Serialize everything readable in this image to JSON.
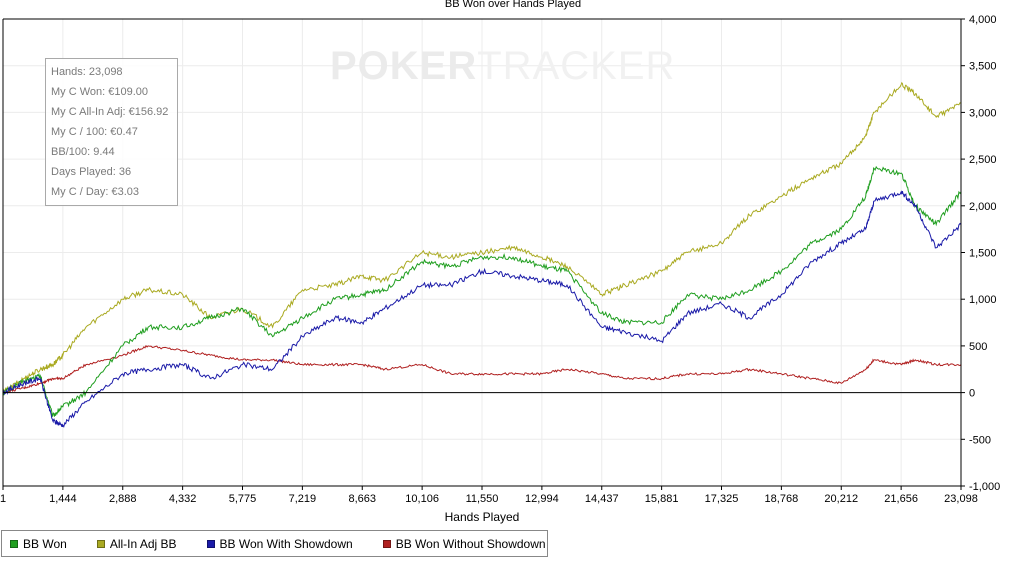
{
  "chart_data": {
    "type": "line",
    "title": "BB Won over Hands Played",
    "xlabel": "Hands Played",
    "ylabel": "",
    "xlim": [
      1,
      23098
    ],
    "ylim": [
      -1000,
      4000
    ],
    "x_ticks": [
      "1",
      "1,444",
      "2,888",
      "4,332",
      "5,775",
      "7,219",
      "8,663",
      "10,106",
      "11,550",
      "12,994",
      "14,437",
      "15,881",
      "17,325",
      "18,768",
      "20,212",
      "21,656",
      "23,098"
    ],
    "y_ticks": [
      "4,000",
      "3,500",
      "3,000",
      "2,500",
      "2,000",
      "1,500",
      "1,000",
      "500",
      "0",
      "-500",
      "-1,000"
    ],
    "grid": true,
    "legend_position": "bottom-left",
    "series": [
      {
        "name": "BB Won",
        "color": "#1f9e1f",
        "x": [
          1,
          500,
          900,
          1200,
          1444,
          2000,
          2888,
          3500,
          4332,
          5000,
          5775,
          6500,
          7219,
          8000,
          8663,
          9200,
          10106,
          10800,
          11550,
          12300,
          12994,
          13600,
          14437,
          15000,
          15881,
          16500,
          17325,
          18000,
          18768,
          19500,
          20212,
          20800,
          21000,
          21656,
          22000,
          22500,
          23098
        ],
        "y": [
          0,
          120,
          180,
          -250,
          -150,
          0,
          500,
          700,
          700,
          800,
          900,
          600,
          800,
          1000,
          1050,
          1100,
          1400,
          1350,
          1450,
          1450,
          1350,
          1300,
          850,
          750,
          750,
          1050,
          1000,
          1100,
          1300,
          1600,
          1750,
          2100,
          2400,
          2350,
          2000,
          1800,
          2150
        ]
      },
      {
        "name": "All-In Adj BB",
        "color": "#aaaa22",
        "x": [
          1,
          500,
          900,
          1200,
          1444,
          2000,
          2888,
          3500,
          4332,
          5000,
          5775,
          6500,
          7219,
          8000,
          8663,
          9200,
          10106,
          10800,
          11550,
          12300,
          12994,
          13600,
          14437,
          15000,
          15881,
          16500,
          17325,
          18000,
          18768,
          19500,
          20212,
          20800,
          21000,
          21656,
          22000,
          22500,
          23098
        ],
        "y": [
          0,
          150,
          250,
          300,
          400,
          700,
          1000,
          1100,
          1050,
          800,
          900,
          700,
          1100,
          1150,
          1250,
          1200,
          1500,
          1450,
          1500,
          1550,
          1450,
          1350,
          1050,
          1150,
          1300,
          1500,
          1600,
          1900,
          2100,
          2300,
          2450,
          2750,
          3000,
          3300,
          3200,
          2950,
          3100
        ]
      },
      {
        "name": "BB Won With Showdown",
        "color": "#1a1aa8",
        "x": [
          1,
          500,
          900,
          1200,
          1444,
          2000,
          2888,
          3500,
          4332,
          5000,
          5775,
          6500,
          7219,
          8000,
          8663,
          9200,
          10106,
          10800,
          11550,
          12300,
          12994,
          13600,
          14437,
          15000,
          15881,
          16500,
          17325,
          18000,
          18768,
          19500,
          20212,
          20800,
          21000,
          21656,
          22000,
          22500,
          23098
        ],
        "y": [
          0,
          100,
          150,
          -300,
          -350,
          -100,
          200,
          250,
          300,
          150,
          300,
          250,
          600,
          800,
          750,
          900,
          1150,
          1150,
          1300,
          1250,
          1200,
          1150,
          700,
          650,
          550,
          850,
          950,
          800,
          1050,
          1400,
          1600,
          1750,
          2050,
          2150,
          2000,
          1550,
          1800
        ]
      },
      {
        "name": "BB Won Without Showdown",
        "color": "#b02020",
        "x": [
          1,
          500,
          900,
          1200,
          1444,
          2000,
          2888,
          3500,
          4332,
          5000,
          5775,
          6500,
          7219,
          8000,
          8663,
          9200,
          10106,
          10800,
          11550,
          12300,
          12994,
          13600,
          14437,
          15000,
          15881,
          16500,
          17325,
          18000,
          18768,
          19500,
          20212,
          20800,
          21000,
          21656,
          22000,
          22500,
          23098
        ],
        "y": [
          0,
          50,
          100,
          150,
          150,
          300,
          400,
          500,
          450,
          400,
          350,
          350,
          300,
          300,
          300,
          250,
          300,
          200,
          200,
          200,
          200,
          250,
          200,
          150,
          150,
          200,
          200,
          250,
          200,
          150,
          100,
          250,
          350,
          300,
          350,
          300,
          300
        ]
      }
    ]
  },
  "info": {
    "hands": "Hands: 23,098",
    "won": "My C Won: €109.00",
    "allin": "My C All-In Adj: €156.92",
    "per100": "My C / 100: €0.47",
    "bb100": "BB/100: 9.44",
    "days": "Days Played: 36",
    "perday": "My C / Day: €3.03"
  },
  "watermark": {
    "part1": "POKER",
    "part2": "TRACKER"
  }
}
